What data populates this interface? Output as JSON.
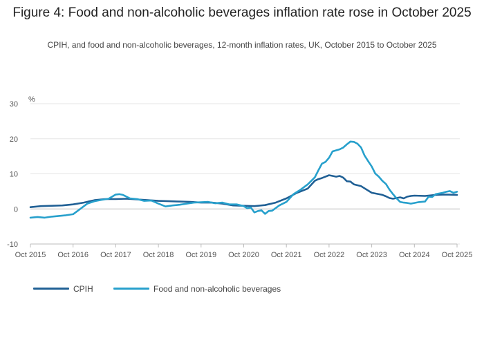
{
  "title": "Figure 4: Food and non-alcoholic beverages inflation rate rose in October 2025",
  "subtitle": "CPIH, and food and non-alcoholic beverages, 12-month inflation rates, UK, October 2015 to October 2025",
  "colors": {
    "cpih": "#206095",
    "food": "#27a0cc",
    "grid": "#e5e5e5",
    "axis": "#bbbbbb"
  },
  "chart_data": {
    "type": "line",
    "title": "Figure 4: Food and non-alcoholic beverages inflation rate rose in October 2025",
    "ylabel": "%",
    "xlabel": "",
    "ylim": [
      -10,
      30
    ],
    "yticks": [
      "-10",
      "0",
      "10",
      "20",
      "30"
    ],
    "ytick_values": [
      -10,
      0,
      10,
      20,
      30
    ],
    "xticks": [
      "Oct 2015",
      "Oct 2016",
      "Oct 2017",
      "Oct 2018",
      "Oct 2019",
      "Oct 2020",
      "Oct 2021",
      "Oct 2022",
      "Oct 2023",
      "Oct 2024",
      "Oct 2025"
    ],
    "x_note": "x values are months since October 2015 (0 = Oct 2015, 120 = Oct 2025)",
    "xlim": [
      0,
      120
    ],
    "legend": "bottom-left",
    "series": [
      {
        "name": "CPIH",
        "color": "#206095",
        "x": [
          0,
          3,
          6,
          9,
          12,
          15,
          18,
          21,
          24,
          27,
          30,
          33,
          36,
          39,
          42,
          45,
          48,
          51,
          54,
          57,
          60,
          63,
          66,
          69,
          72,
          75,
          76,
          78,
          80,
          81,
          82,
          84,
          85,
          86,
          87,
          88,
          89,
          90,
          91,
          93,
          96,
          98,
          99,
          100,
          101,
          102,
          103,
          104,
          105,
          106,
          107,
          108,
          111,
          114,
          117,
          120
        ],
        "y": [
          0.5,
          0.8,
          0.9,
          1.0,
          1.3,
          1.8,
          2.5,
          2.8,
          2.8,
          2.9,
          2.7,
          2.5,
          2.3,
          2.2,
          2.1,
          2.0,
          1.8,
          1.8,
          1.5,
          1.0,
          0.9,
          0.8,
          1.1,
          1.8,
          3.0,
          4.6,
          5.0,
          5.8,
          8.0,
          8.5,
          8.8,
          9.6,
          9.4,
          9.2,
          9.4,
          8.9,
          7.9,
          7.8,
          7.0,
          6.5,
          4.6,
          4.2,
          4.0,
          3.6,
          3.1,
          2.9,
          3.1,
          3.3,
          3.0,
          3.5,
          3.7,
          3.8,
          3.7,
          4.0,
          4.1,
          4.0
        ]
      },
      {
        "name": "Food and non-alcoholic beverages",
        "color": "#27a0cc",
        "x": [
          0,
          2,
          4,
          6,
          8,
          10,
          12,
          14,
          16,
          18,
          20,
          22,
          24,
          25,
          26,
          28,
          30,
          32,
          34,
          36,
          38,
          40,
          42,
          44,
          46,
          48,
          50,
          52,
          54,
          56,
          58,
          60,
          61,
          62,
          63,
          64,
          65,
          66,
          67,
          68,
          70,
          72,
          74,
          76,
          78,
          80,
          81,
          82,
          83,
          84,
          85,
          86,
          87,
          88,
          89,
          90,
          91,
          92,
          93,
          94,
          95,
          96,
          97,
          98,
          99,
          100,
          101,
          102,
          103,
          104,
          105,
          106,
          107,
          108,
          109,
          110,
          111,
          112,
          113,
          114,
          115,
          116,
          117,
          118,
          119,
          120
        ],
        "y": [
          -2.5,
          -2.3,
          -2.5,
          -2.2,
          -2.0,
          -1.8,
          -1.5,
          0.0,
          1.5,
          2.2,
          2.6,
          2.9,
          4.1,
          4.2,
          4.0,
          3.0,
          2.8,
          2.3,
          2.4,
          1.5,
          0.7,
          1.0,
          1.2,
          1.5,
          1.8,
          1.9,
          2.0,
          1.6,
          1.8,
          1.3,
          1.3,
          0.8,
          0.2,
          0.4,
          -1.0,
          -0.6,
          -0.4,
          -1.4,
          -0.6,
          -0.5,
          1.0,
          2.0,
          4.2,
          5.5,
          7.0,
          9.0,
          11.0,
          12.9,
          13.4,
          14.6,
          16.4,
          16.7,
          17.0,
          17.5,
          18.4,
          19.2,
          19.1,
          18.6,
          17.5,
          15.2,
          13.6,
          12.1,
          10.1,
          9.2,
          8.0,
          7.1,
          5.5,
          4.2,
          3.0,
          2.0,
          1.8,
          1.7,
          1.5,
          1.7,
          1.9,
          2.0,
          2.1,
          3.5,
          3.4,
          4.2,
          4.4,
          4.6,
          4.9,
          5.1,
          4.6,
          4.9
        ]
      }
    ]
  }
}
